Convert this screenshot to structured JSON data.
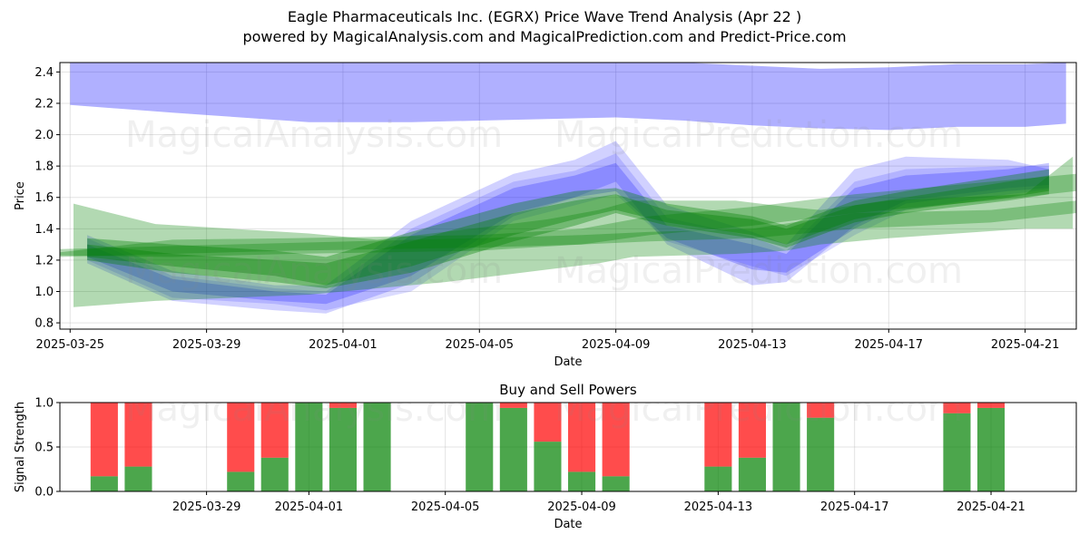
{
  "title": "Eagle Pharmaceuticals Inc. (EGRX) Price Wave Trend Analysis (Apr 22 )",
  "subtitle": "powered by MagicalAnalysis.com and MagicalPrediction.com and Predict-Price.com",
  "watermarks": [
    "MagicalAnalysis.com",
    "MagicalPrediction.com"
  ],
  "colors": {
    "blue_band": "#0000ff",
    "green_band": "#008000",
    "buy": "#008000",
    "sell": "#ff0000"
  },
  "chart_data": [
    {
      "type": "area",
      "name": "price-wave",
      "xlabel": "Date",
      "ylabel": "Price",
      "ylim": [
        0.76,
        2.46
      ],
      "x_range": [
        "2025-03-24.7",
        "2025-04-23.5"
      ],
      "x_day_range": [
        -0.3,
        29.5
      ],
      "yticks": [
        0.8,
        1.0,
        1.2,
        1.4,
        1.6,
        1.8,
        2.0,
        2.2,
        2.4
      ],
      "ytick_labels": [
        "0.8",
        "1.0",
        "1.2",
        "1.4",
        "1.6",
        "1.8",
        "2.0",
        "2.2",
        "2.4"
      ],
      "xticks": [
        0,
        4,
        8,
        12,
        16,
        20,
        24,
        28
      ],
      "xtick_labels": [
        "2025-03-25",
        "2025-03-29",
        "2025-04-01",
        "2025-04-05",
        "2025-04-09",
        "2025-04-13",
        "2025-04-17",
        "2025-04-21"
      ],
      "grid": true,
      "upper_blue_band": {
        "x": [
          0,
          3,
          7,
          10,
          14,
          16,
          18,
          20,
          22,
          24,
          26,
          28,
          29.2
        ],
        "upper": [
          2.46,
          2.46,
          2.46,
          2.46,
          2.46,
          2.46,
          2.46,
          2.44,
          2.42,
          2.43,
          2.45,
          2.45,
          2.46
        ],
        "lower": [
          2.19,
          2.14,
          2.08,
          2.08,
          2.1,
          2.11,
          2.09,
          2.06,
          2.04,
          2.03,
          2.05,
          2.05,
          2.07
        ]
      },
      "blue_bands": [
        {
          "x": [
            0.5,
            3,
            6,
            7.5,
            10,
            13,
            14.8,
            16,
            17.5,
            20,
            21,
            23,
            24.5,
            27.5,
            28.7
          ],
          "upper": [
            1.34,
            1.1,
            1.02,
            1.0,
            1.4,
            1.7,
            1.77,
            1.88,
            1.47,
            1.35,
            1.26,
            1.7,
            1.78,
            1.8,
            1.8
          ],
          "lower": [
            1.2,
            0.96,
            0.92,
            0.88,
            1.0,
            1.45,
            1.55,
            1.62,
            1.32,
            1.16,
            1.1,
            1.36,
            1.52,
            1.62,
            1.65
          ]
        },
        {
          "x": [
            0.5,
            3,
            6,
            7.5,
            10,
            13,
            14.8,
            16,
            17.5,
            20,
            21,
            23,
            24.5,
            27.5,
            28.7
          ],
          "upper": [
            1.36,
            1.13,
            1.04,
            1.04,
            1.45,
            1.75,
            1.84,
            1.96,
            1.55,
            1.38,
            1.3,
            1.78,
            1.86,
            1.84,
            1.78
          ],
          "lower": [
            1.18,
            0.94,
            0.88,
            0.86,
            1.05,
            1.48,
            1.6,
            1.7,
            1.3,
            1.04,
            1.06,
            1.42,
            1.58,
            1.66,
            1.68
          ]
        },
        {
          "x": [
            0.5,
            3,
            6,
            7.5,
            10,
            13,
            14.8,
            16,
            17.5,
            20,
            21,
            23,
            24.5,
            27.5,
            28.7
          ],
          "upper": [
            1.3,
            1.08,
            1.0,
            0.98,
            1.36,
            1.66,
            1.74,
            1.82,
            1.42,
            1.3,
            1.24,
            1.66,
            1.74,
            1.78,
            1.82
          ],
          "lower": [
            1.22,
            1.0,
            0.94,
            0.92,
            1.1,
            1.5,
            1.6,
            1.64,
            1.34,
            1.14,
            1.12,
            1.4,
            1.56,
            1.64,
            1.66
          ]
        }
      ],
      "green_bands": [
        {
          "x": [
            -0.3,
            3,
            6.5,
            12,
            15,
            17,
            20,
            23,
            27,
            29.5
          ],
          "upper": [
            1.25,
            1.33,
            1.34,
            1.36,
            1.4,
            1.48,
            1.54,
            1.62,
            1.7,
            1.75
          ],
          "lower": [
            1.23,
            1.22,
            1.24,
            1.26,
            1.3,
            1.36,
            1.42,
            1.5,
            1.58,
            1.64
          ]
        },
        {
          "x": [
            -0.3,
            3,
            6.5,
            12,
            15,
            17,
            20,
            23,
            27,
            29.5
          ],
          "upper": [
            1.27,
            1.29,
            1.31,
            1.34,
            1.36,
            1.38,
            1.4,
            1.5,
            1.52,
            1.58
          ],
          "lower": [
            1.22,
            1.24,
            1.26,
            1.28,
            1.3,
            1.32,
            1.34,
            1.4,
            1.44,
            1.5
          ]
        },
        {
          "x": [
            0.1,
            2.5,
            7,
            9,
            11,
            12.5,
            14,
            15.5,
            16.5,
            19.5,
            21,
            22,
            24,
            28,
            29.4
          ],
          "upper": [
            1.56,
            1.43,
            1.37,
            1.33,
            1.38,
            1.42,
            1.46,
            1.52,
            1.58,
            1.58,
            1.54,
            1.52,
            1.58,
            1.62,
            1.86
          ],
          "lower": [
            0.9,
            0.94,
            0.98,
            1.02,
            1.06,
            1.1,
            1.14,
            1.18,
            1.22,
            1.24,
            1.26,
            1.3,
            1.34,
            1.4,
            1.4
          ]
        },
        {
          "x": [
            0.5,
            3,
            6,
            7.5,
            10,
            13,
            14.8,
            16,
            17.5,
            20,
            21,
            23,
            24.5,
            27.5,
            28.7
          ],
          "upper": [
            1.3,
            1.24,
            1.2,
            1.18,
            1.32,
            1.5,
            1.58,
            1.62,
            1.52,
            1.46,
            1.4,
            1.55,
            1.6,
            1.7,
            1.74
          ],
          "lower": [
            1.2,
            1.12,
            1.06,
            1.02,
            1.12,
            1.32,
            1.42,
            1.5,
            1.42,
            1.34,
            1.28,
            1.44,
            1.5,
            1.58,
            1.62
          ]
        },
        {
          "x": [
            0.5,
            3,
            6,
            7.5,
            10,
            13,
            14.8,
            16,
            17.5,
            20,
            21,
            23,
            24.5,
            27.5,
            28.7
          ],
          "upper": [
            1.34,
            1.3,
            1.26,
            1.22,
            1.38,
            1.56,
            1.64,
            1.66,
            1.56,
            1.48,
            1.42,
            1.58,
            1.64,
            1.74,
            1.78
          ],
          "lower": [
            1.22,
            1.16,
            1.1,
            1.04,
            1.16,
            1.36,
            1.46,
            1.52,
            1.44,
            1.36,
            1.3,
            1.46,
            1.52,
            1.6,
            1.64
          ]
        }
      ]
    },
    {
      "type": "bar",
      "name": "buy-sell-powers",
      "title": "Buy and Sell Powers",
      "xlabel": "Date",
      "ylabel": "Signal Strength",
      "ylim": [
        0,
        1
      ],
      "yticks": [
        0.0,
        0.5,
        1.0
      ],
      "ytick_labels": [
        "0.0",
        "0.5",
        "1.0"
      ],
      "x_day_range": [
        -0.3,
        29.5
      ],
      "xticks": [
        4,
        7,
        11,
        15,
        19,
        23,
        27
      ],
      "xtick_labels": [
        "2025-03-29",
        "2025-04-01",
        "2025-04-05",
        "2025-04-09",
        "2025-04-13",
        "2025-04-17",
        "2025-04-21"
      ],
      "grid": true,
      "days": [
        1,
        2,
        5,
        6,
        7,
        8,
        9,
        12,
        13,
        14,
        15,
        16,
        19,
        20,
        21,
        22,
        26,
        27
      ],
      "dates": [
        "2025-03-26",
        "2025-03-27",
        "2025-03-30",
        "2025-03-31",
        "2025-04-01",
        "2025-04-02",
        "2025-04-03",
        "2025-04-06",
        "2025-04-07",
        "2025-04-08",
        "2025-04-09",
        "2025-04-10",
        "2025-04-13",
        "2025-04-14",
        "2025-04-15",
        "2025-04-16",
        "2025-04-20",
        "2025-04-21"
      ],
      "series": [
        {
          "name": "Buy",
          "values": [
            0.17,
            0.28,
            0.22,
            0.38,
            1.0,
            0.94,
            1.0,
            1.0,
            0.94,
            0.56,
            0.22,
            0.17,
            0.28,
            0.38,
            1.0,
            0.83,
            0.88,
            0.94
          ]
        },
        {
          "name": "Sell",
          "values": [
            0.83,
            0.72,
            0.78,
            0.62,
            0.0,
            0.06,
            0.0,
            0.0,
            0.06,
            0.44,
            0.78,
            0.83,
            0.72,
            0.62,
            0.0,
            0.17,
            0.12,
            0.06
          ]
        }
      ]
    }
  ]
}
